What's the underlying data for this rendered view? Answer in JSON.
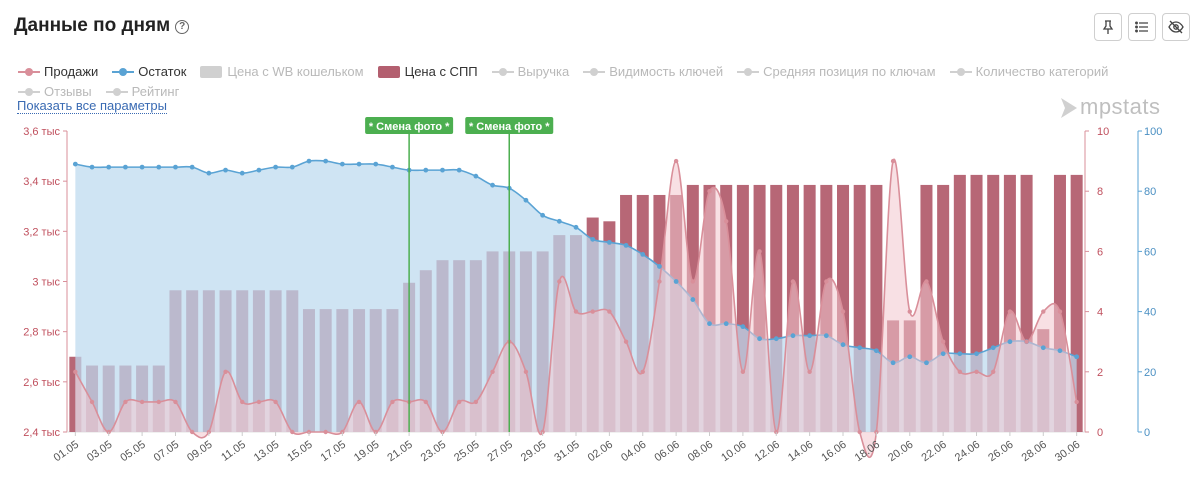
{
  "header": {
    "title": "Данные по дням",
    "help_icon": "question-circle-icon",
    "buttons": [
      "pin-icon",
      "list-icon",
      "eye-off-icon"
    ]
  },
  "legend": [
    {
      "label": "Продажи",
      "kind": "line",
      "color": "#d98f9a",
      "active": true
    },
    {
      "label": "Остаток",
      "kind": "line",
      "color": "#5aa3d4",
      "active": true
    },
    {
      "label": "Цена с WB кошельком",
      "kind": "box",
      "color": "#d0d0d0",
      "active": false
    },
    {
      "label": "Цена с СПП",
      "kind": "box",
      "color": "#b35f6f",
      "active": true
    },
    {
      "label": "Выручка",
      "kind": "line",
      "color": "#d0d0d0",
      "active": false
    },
    {
      "label": "Видимость ключей",
      "kind": "line",
      "color": "#d0d0d0",
      "active": false
    },
    {
      "label": "Средняя позиция по ключам",
      "kind": "line",
      "color": "#d0d0d0",
      "active": false
    },
    {
      "label": "Количество категорий",
      "kind": "line",
      "color": "#d0d0d0",
      "active": false
    },
    {
      "label": "Отзывы",
      "kind": "line",
      "color": "#d0d0d0",
      "active": false
    },
    {
      "label": "Рейтинг",
      "kind": "line",
      "color": "#d0d0d0",
      "active": false
    }
  ],
  "show_all_label": "Показать все параметры",
  "brand": "mpstats",
  "chart_data": {
    "type": "bar+line+area",
    "categories": [
      "01.05",
      "02.05",
      "03.05",
      "04.05",
      "05.05",
      "06.05",
      "07.05",
      "08.05",
      "09.05",
      "10.05",
      "11.05",
      "12.05",
      "13.05",
      "14.05",
      "15.05",
      "16.05",
      "17.05",
      "18.05",
      "19.05",
      "20.05",
      "21.05",
      "22.05",
      "23.05",
      "24.05",
      "25.05",
      "26.05",
      "27.05",
      "28.05",
      "29.05",
      "30.05",
      "31.05",
      "01.06",
      "02.06",
      "03.06",
      "04.06",
      "05.06",
      "06.06",
      "07.06",
      "08.06",
      "09.06",
      "10.06",
      "11.06",
      "12.06",
      "13.06",
      "14.06",
      "15.06",
      "16.06",
      "17.06",
      "18.06",
      "19.06",
      "20.06",
      "21.06",
      "22.06",
      "23.06",
      "24.06",
      "25.06",
      "26.06",
      "27.06",
      "28.06",
      "29.06",
      "30.06"
    ],
    "x_tick_labels": [
      "01.05",
      "03.05",
      "05.05",
      "07.05",
      "09.05",
      "11.05",
      "13.05",
      "15.05",
      "17.05",
      "19.05",
      "21.05",
      "23.05",
      "25.05",
      "27.05",
      "29.05",
      "31.05",
      "02.06",
      "04.06",
      "06.06",
      "08.06",
      "10.06",
      "12.06",
      "14.06",
      "16.06",
      "18.06",
      "20.06",
      "22.06",
      "24.06",
      "26.06",
      "28.06",
      "30.06"
    ],
    "series": [
      {
        "name": "Цена с СПП",
        "type": "bar",
        "axis": "left",
        "color": "#b35f6f",
        "values": [
          2700,
          2665,
          2665,
          2665,
          2665,
          2665,
          2965,
          2965,
          2965,
          2965,
          2965,
          2965,
          2965,
          2965,
          2890,
          2890,
          2890,
          2890,
          2890,
          2890,
          2995,
          3045,
          3085,
          3085,
          3085,
          3120,
          3120,
          3120,
          3120,
          3185,
          3185,
          3255,
          3240,
          3345,
          3345,
          3345,
          3345,
          3385,
          3385,
          3385,
          3385,
          3385,
          3385,
          3385,
          3385,
          3385,
          3385,
          3385,
          3385,
          2845,
          2845,
          3385,
          3385,
          3425,
          3425,
          3425,
          3425,
          3425,
          2810,
          3425,
          3425
        ]
      },
      {
        "name": "Продажи",
        "type": "line",
        "axis": "right1",
        "color": "#d98f9a",
        "values": [
          2,
          1,
          0,
          1,
          1,
          1,
          1,
          0,
          0,
          2,
          1,
          1,
          1,
          0,
          0,
          0,
          0,
          1,
          0,
          1,
          1,
          1,
          0,
          1,
          1,
          2,
          3,
          2,
          0,
          5,
          4,
          4,
          4,
          3,
          2,
          5,
          9,
          5,
          8,
          7,
          2,
          6,
          0,
          5,
          2,
          5,
          4,
          0,
          0,
          9,
          4,
          5,
          3,
          2,
          2,
          2,
          4,
          3,
          4,
          4,
          1
        ]
      },
      {
        "name": "Остаток",
        "type": "area",
        "axis": "right2",
        "color": "#5aa3d4",
        "values": [
          89,
          88,
          88,
          88,
          88,
          88,
          88,
          88,
          86,
          87,
          86,
          87,
          88,
          88,
          90,
          90,
          89,
          89,
          89,
          88,
          87,
          87,
          87,
          87,
          85,
          82,
          81,
          77,
          72,
          70,
          68,
          64,
          63,
          62,
          59,
          55,
          50,
          44,
          36,
          36,
          35,
          31,
          31,
          32,
          32,
          32,
          29,
          28,
          27,
          23,
          25,
          23,
          26,
          26,
          26,
          28,
          30,
          30,
          28,
          27,
          25
        ]
      }
    ],
    "axes": {
      "left": {
        "ticks": [
          "2,4 тыс",
          "2,6 тыс",
          "2,8 тыс",
          "3 тыс",
          "3,2 тыс",
          "3,4 тыс",
          "3,6 тыс"
        ],
        "min": 2400,
        "max": 3600
      },
      "right1": {
        "ticks": [
          "0",
          "2",
          "4",
          "6",
          "8",
          "10"
        ],
        "min": 0,
        "max": 10
      },
      "right2": {
        "ticks": [
          "0",
          "20",
          "40",
          "60",
          "80",
          "100"
        ],
        "min": 0,
        "max": 100
      }
    },
    "annotations": [
      {
        "label": "* Смена фото *",
        "date": "21.05"
      },
      {
        "label": "* Смена фото *",
        "date": "27.05"
      }
    ]
  }
}
